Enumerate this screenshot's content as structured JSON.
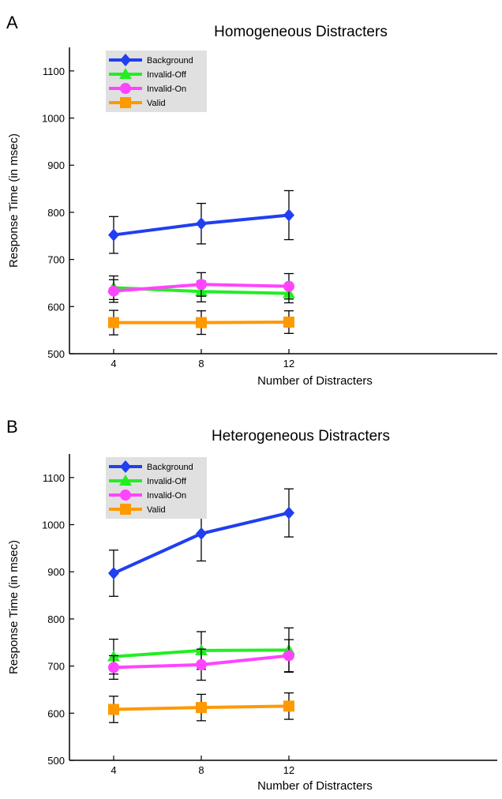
{
  "chart_data": [
    {
      "type": "line",
      "panel_label": "A",
      "title": "Homogeneous Distracters",
      "xlabel": "Number of Distracters",
      "ylabel": "Response Time (in msec)",
      "x": [
        4,
        8,
        12
      ],
      "ylim": [
        500,
        1150
      ],
      "yticks": [
        500,
        600,
        700,
        800,
        900,
        1000,
        1100
      ],
      "xticks": [
        4,
        8,
        12
      ],
      "legend_position": "top-left",
      "series": [
        {
          "name": "Background",
          "color": "#1f3ff0",
          "marker": "diamond",
          "values": [
            752,
            776,
            794
          ],
          "errors": [
            39,
            43,
            52
          ]
        },
        {
          "name": "Invalid-Off",
          "color": "#22ee22",
          "marker": "triangle",
          "values": [
            640,
            632,
            628
          ],
          "errors": [
            25,
            22,
            20
          ]
        },
        {
          "name": "Invalid-On",
          "color": "#ff44ff",
          "marker": "circle",
          "values": [
            633,
            647,
            643
          ],
          "errors": [
            24,
            25,
            27
          ]
        },
        {
          "name": "Valid",
          "color": "#ff9900",
          "marker": "square",
          "values": [
            566,
            566,
            567
          ],
          "errors": [
            26,
            25,
            24
          ]
        }
      ]
    },
    {
      "type": "line",
      "panel_label": "B",
      "title": "Heterogeneous Distracters",
      "xlabel": "Number of Distracters",
      "ylabel": "Response Time (in msec)",
      "x": [
        4,
        8,
        12
      ],
      "ylim": [
        500,
        1150
      ],
      "yticks": [
        500,
        600,
        700,
        800,
        900,
        1000,
        1100
      ],
      "xticks": [
        4,
        8,
        12
      ],
      "legend_position": "top-left",
      "series": [
        {
          "name": "Background",
          "color": "#1f3ff0",
          "marker": "diamond",
          "values": [
            897,
            981,
            1025
          ],
          "errors": [
            49,
            58,
            51
          ]
        },
        {
          "name": "Invalid-Off",
          "color": "#22ee22",
          "marker": "triangle",
          "values": [
            720,
            733,
            734
          ],
          "errors": [
            37,
            40,
            47
          ]
        },
        {
          "name": "Invalid-On",
          "color": "#ff44ff",
          "marker": "circle",
          "values": [
            697,
            703,
            722
          ],
          "errors": [
            25,
            33,
            34
          ]
        },
        {
          "name": "Valid",
          "color": "#ff9900",
          "marker": "square",
          "values": [
            608,
            612,
            615
          ],
          "errors": [
            28,
            28,
            28
          ]
        }
      ]
    }
  ]
}
